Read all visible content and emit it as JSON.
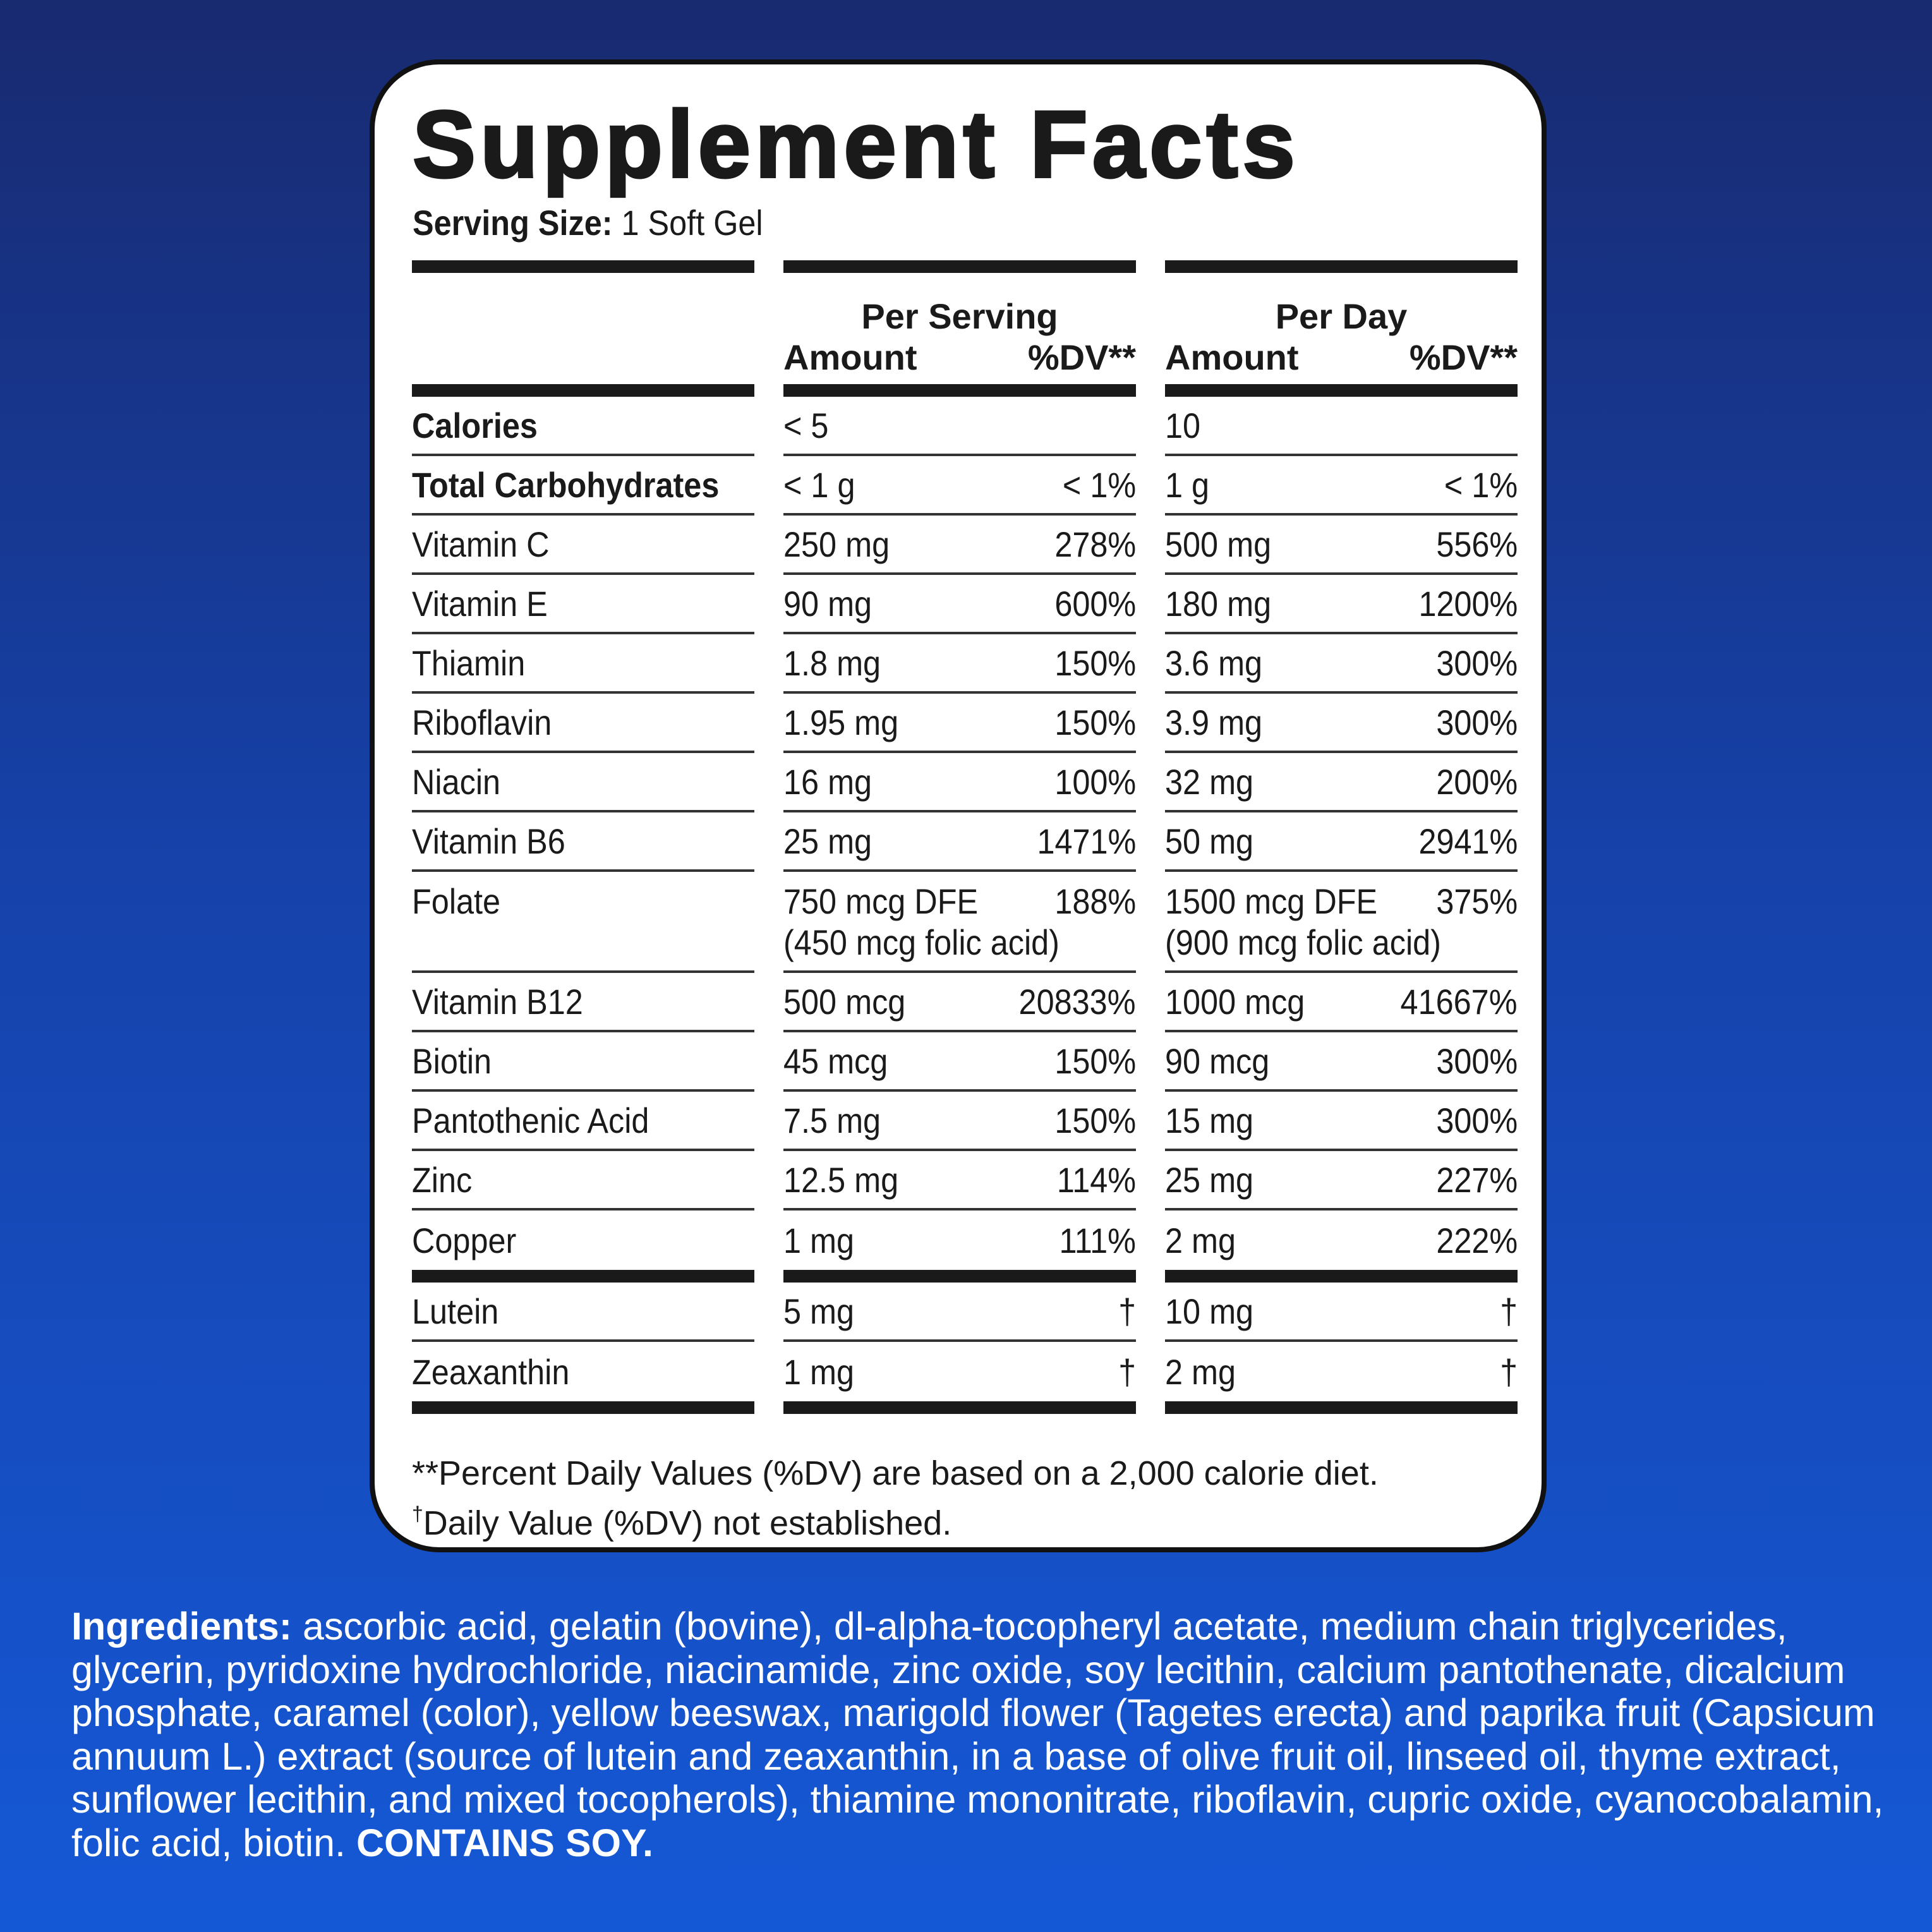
{
  "title": "Supplement Facts",
  "serving": {
    "label": "Serving Size:",
    "value": "1 Soft Gel"
  },
  "header": {
    "per_serving": "Per Serving",
    "per_day": "Per Day",
    "amount": "Amount",
    "dv": "%DV**"
  },
  "table": {
    "sections": [
      {
        "rows": [
          {
            "name": "Calories",
            "serving": {
              "amount": "< 5"
            },
            "day": {
              "amount": "10"
            }
          },
          {
            "name": "Total Carbohydrates",
            "serving": {
              "amount": "< 1 g",
              "dv": "< 1%"
            },
            "day": {
              "amount": "1 g",
              "dv": "< 1%"
            }
          },
          {
            "name": "Vitamin C",
            "serving": {
              "amount": "250 mg",
              "dv": "278%"
            },
            "day": {
              "amount": "500 mg",
              "dv": "556%"
            }
          },
          {
            "name": "Vitamin E",
            "serving": {
              "amount": "90 mg",
              "dv": "600%"
            },
            "day": {
              "amount": "180 mg",
              "dv": "1200%"
            }
          },
          {
            "name": "Thiamin",
            "serving": {
              "amount": "1.8 mg",
              "dv": "150%"
            },
            "day": {
              "amount": "3.6 mg",
              "dv": "300%"
            }
          },
          {
            "name": "Riboflavin",
            "serving": {
              "amount": "1.95 mg",
              "dv": "150%"
            },
            "day": {
              "amount": "3.9 mg",
              "dv": "300%"
            }
          },
          {
            "name": "Niacin",
            "serving": {
              "amount": "16 mg",
              "dv": "100%"
            },
            "day": {
              "amount": "32 mg",
              "dv": "200%"
            }
          },
          {
            "name": "Vitamin B6",
            "serving": {
              "amount": "25 mg",
              "dv": "1471%"
            },
            "day": {
              "amount": "50 mg",
              "dv": "2941%"
            }
          },
          {
            "name": "Folate",
            "serving": {
              "amount": "750 mcg DFE",
              "dv": "188%",
              "note": "(450 mcg folic acid)"
            },
            "day": {
              "amount": "1500 mcg DFE",
              "dv": "375%",
              "note": "(900 mcg folic acid)"
            }
          },
          {
            "name": "Vitamin B12",
            "serving": {
              "amount": "500 mcg",
              "dv": "20833%"
            },
            "day": {
              "amount": "1000 mcg",
              "dv": "41667%"
            }
          },
          {
            "name": "Biotin",
            "serving": {
              "amount": "45 mcg",
              "dv": "150%"
            },
            "day": {
              "amount": "90 mcg",
              "dv": "300%"
            }
          },
          {
            "name": "Pantothenic Acid",
            "serving": {
              "amount": "7.5 mg",
              "dv": "150%"
            },
            "day": {
              "amount": "15 mg",
              "dv": "300%"
            }
          },
          {
            "name": "Zinc",
            "serving": {
              "amount": "12.5 mg",
              "dv": "114%"
            },
            "day": {
              "amount": "25 mg",
              "dv": "227%"
            }
          },
          {
            "name": "Copper",
            "serving": {
              "amount": "1 mg",
              "dv": "111%"
            },
            "day": {
              "amount": "2 mg",
              "dv": "222%"
            }
          }
        ]
      },
      {
        "rows": [
          {
            "name": "Lutein",
            "serving": {
              "amount": "5 mg",
              "dv": "†"
            },
            "day": {
              "amount": "10 mg",
              "dv": "†"
            }
          },
          {
            "name": "Zeaxanthin",
            "serving": {
              "amount": "1 mg",
              "dv": "†"
            },
            "day": {
              "amount": "2 mg",
              "dv": "†"
            }
          }
        ]
      }
    ]
  },
  "footnotes": {
    "percent": "**Percent Daily Values (%DV) are based on a 2,000 calorie diet.",
    "dagger_mark": "†",
    "dagger_text": "Daily Value (%DV) not established."
  },
  "ingredients": {
    "label": "Ingredients:",
    "text": "ascorbic acid, gelatin (bovine), dl-alpha-tocopheryl acetate, medium chain triglycerides, glycerin, pyridoxine hydrochloride, niacinamide, zinc oxide, soy lecithin, calcium pantothenate, dicalcium phosphate, caramel (color), yellow beeswax, marigold flower (Tagetes erecta) and paprika fruit (Capsicum annuum L.) extract (source of lutein and zeaxanthin, in a base of olive fruit oil, linseed oil, thyme extract, sunflower lecithin, and mixed tocopherols), thiamine mononitrate, riboflavin, cupric oxide, cyanocobalamin, folic acid, biotin.",
    "warning": "CONTAINS SOY."
  }
}
